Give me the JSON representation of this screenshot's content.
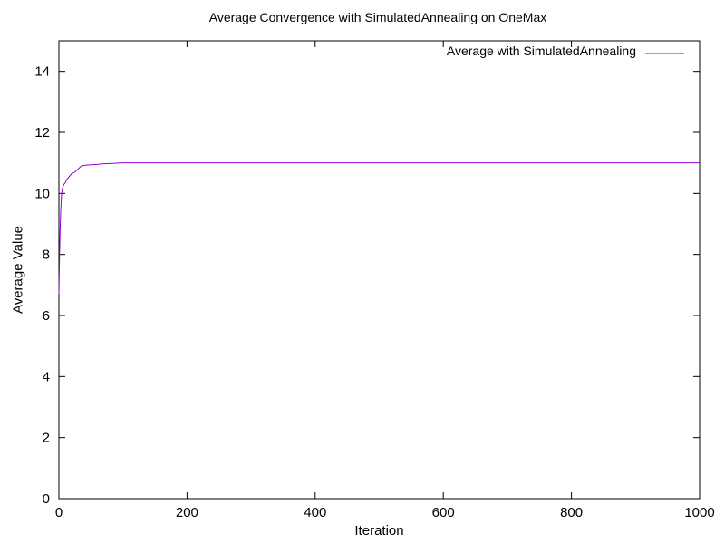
{
  "chart_data": {
    "type": "line",
    "title": "Average Convergence with SimulatedAnnealing on OneMax",
    "xlabel": "Iteration",
    "ylabel": "Average Value",
    "xlim": [
      0,
      1000
    ],
    "ylim": [
      0,
      15
    ],
    "x_ticks": [
      0,
      200,
      400,
      600,
      800,
      1000
    ],
    "y_ticks": [
      0,
      2,
      4,
      6,
      8,
      10,
      12,
      14
    ],
    "grid": false,
    "legend_position": "top-right",
    "series": [
      {
        "name": "Average with SimulatedAnnealing",
        "color": "#9400d3",
        "x": [
          0,
          1,
          2,
          3,
          4,
          5,
          6,
          7,
          8,
          10,
          12,
          14,
          16,
          18,
          20,
          25,
          30,
          35,
          40,
          45,
          50,
          60,
          70,
          80,
          90,
          100,
          200,
          400,
          600,
          800,
          1000
        ],
        "y": [
          6.7,
          8.0,
          8.9,
          9.5,
          9.9,
          10.1,
          10.2,
          10.25,
          10.3,
          10.35,
          10.45,
          10.5,
          10.55,
          10.6,
          10.65,
          10.7,
          10.8,
          10.9,
          10.92,
          10.93,
          10.94,
          10.95,
          10.97,
          10.98,
          10.99,
          11.0,
          11.0,
          11.0,
          11.0,
          11.0,
          11.0
        ]
      }
    ]
  }
}
